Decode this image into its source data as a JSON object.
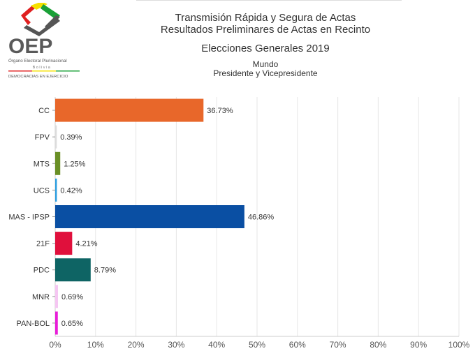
{
  "logo": {
    "text": "OEP",
    "line1": "Órgano Electoral Plurinacional",
    "line2": "Bolivia",
    "line3": "DEMOCRACIAS EN EJERCICIO"
  },
  "header": {
    "title1": "Transmisión Rápida y Segura de Actas",
    "title2": "Resultados Preliminares de Actas en Recinto",
    "title3": "Elecciones Generales 2019",
    "subtitle1": "Mundo",
    "subtitle2": "Presidente y Vicepresidente"
  },
  "chart_data": {
    "type": "bar",
    "orientation": "horizontal",
    "categories": [
      "CC",
      "FPV",
      "MTS",
      "UCS",
      "MAS - IPSP",
      "21F",
      "PDC",
      "MNR",
      "PAN-BOL"
    ],
    "values": [
      36.73,
      0.39,
      1.25,
      0.42,
      46.86,
      4.21,
      8.79,
      0.69,
      0.65
    ],
    "labels": [
      "36.73%",
      "0.39%",
      "1.25%",
      "0.42%",
      "46.86%",
      "4.21%",
      "8.79%",
      "0.69%",
      "0.65%"
    ],
    "colors": [
      "#e8672a",
      "#dcdcdc",
      "#6a8f26",
      "#2e9fe0",
      "#0a4fa3",
      "#e0103c",
      "#0e6464",
      "#f5c6f2",
      "#e81ed8"
    ],
    "xlim": [
      0,
      100
    ],
    "xticks": [
      "0%",
      "10%",
      "20%",
      "30%",
      "40%",
      "50%",
      "60%",
      "70%",
      "80%",
      "90%",
      "100%"
    ],
    "grid": true
  }
}
